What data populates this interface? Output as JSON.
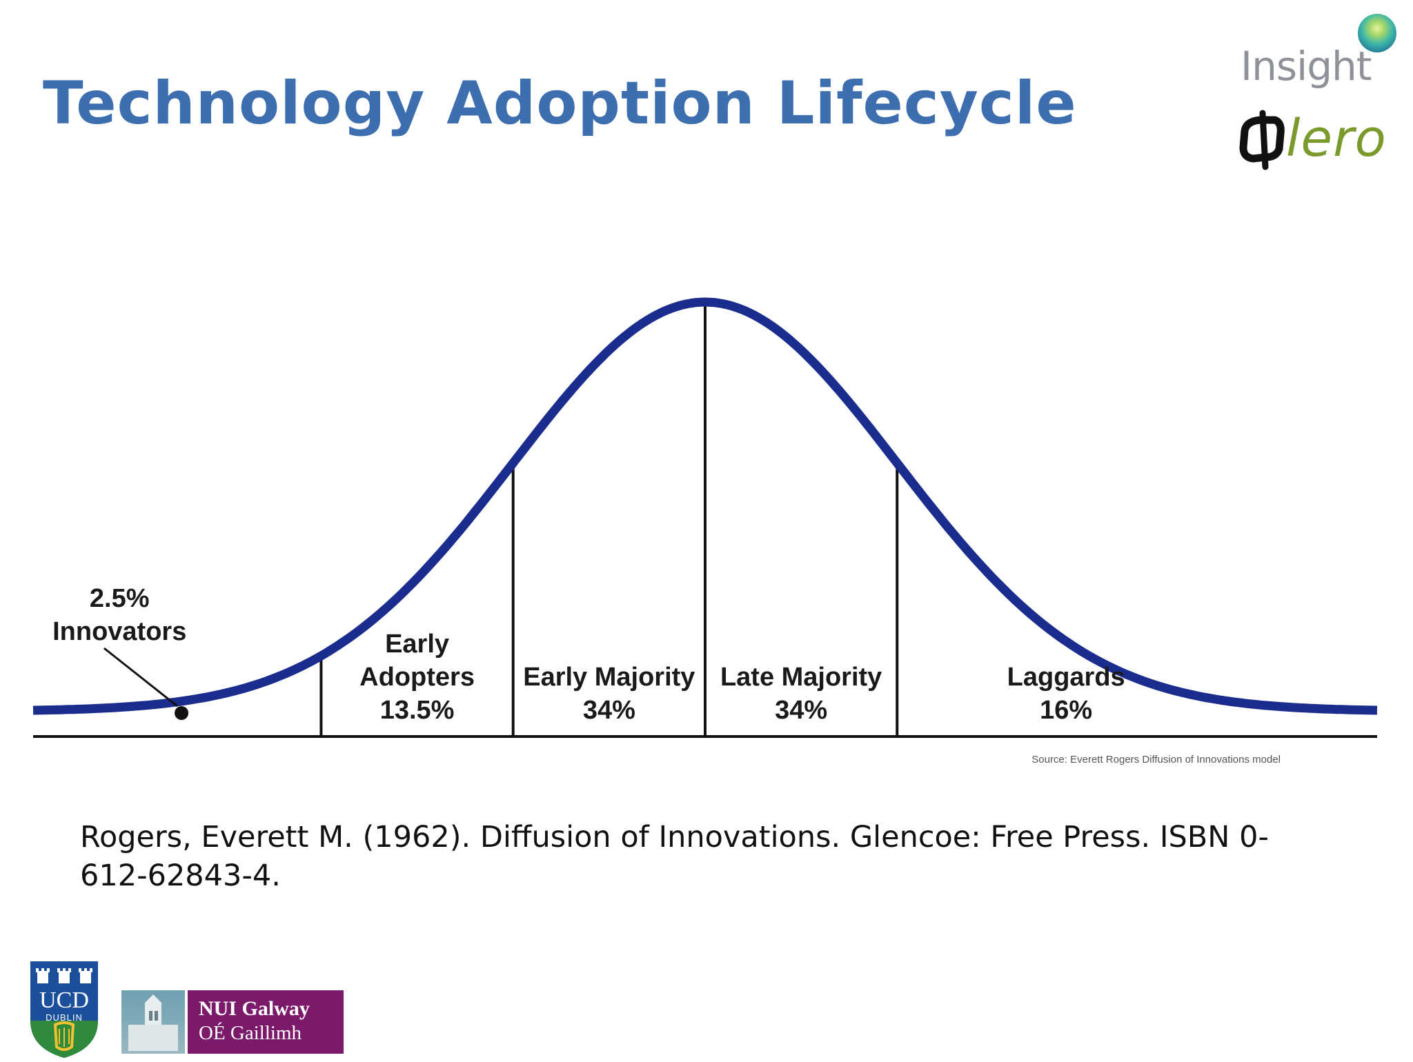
{
  "slide": {
    "title": "Technology Adoption Lifecycle",
    "reference": "Rogers, Everett M. (1962). Diffusion of Innovations. Glencoe: Free Press. ISBN 0-612-62843-4."
  },
  "logos": {
    "insight": "Insight",
    "lero": "lero",
    "ucd_line1": "UCD",
    "ucd_line2": "DUBLIN",
    "nui_line1": "NUI Galway",
    "nui_line2": "OÉ Gaillimh"
  },
  "chart_data": {
    "type": "area",
    "title": "",
    "xlabel": "",
    "ylabel": "",
    "distribution": "normal bell curve",
    "segments": [
      {
        "name": "Innovators",
        "percent_label": "2.5%",
        "value": 2.5
      },
      {
        "name": "Early Adopters",
        "percent_label": "13.5%",
        "value": 13.5
      },
      {
        "name": "Early Majority",
        "percent_label": "34%",
        "value": 34
      },
      {
        "name": "Late Majority",
        "percent_label": "34%",
        "value": 34
      },
      {
        "name": "Laggards",
        "percent_label": "16%",
        "value": 16
      }
    ],
    "boundaries_sd": [
      -2,
      -1,
      0,
      1
    ],
    "x_range_sd": [
      -3.5,
      3.5
    ],
    "curve_color": "#1b2c8f",
    "grid": false,
    "source": "Source: Everett Rogers Diffusion of Innovations model"
  }
}
